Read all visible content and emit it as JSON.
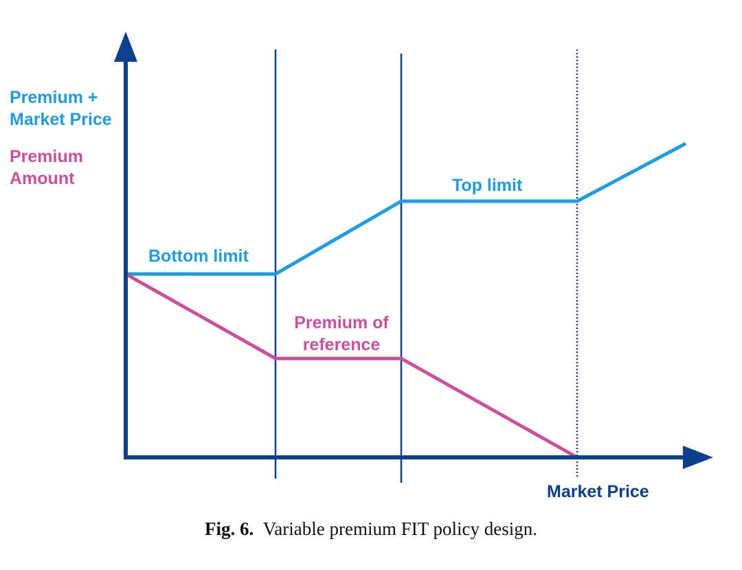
{
  "colors": {
    "axis": "#0d3f8f",
    "premium_plus_market": "#1e9be3",
    "premium_amount": "#cc4f9b"
  },
  "axes": {
    "y_label_premium_plus_market": [
      "Premium +",
      "Market Price"
    ],
    "y_label_premium_amount": [
      "Premium",
      "Amount"
    ],
    "x_label": "Market Price"
  },
  "annotations": {
    "bottom_limit": "Bottom limit",
    "top_limit": "Top limit",
    "premium_of_reference": [
      "Premium of",
      "reference"
    ]
  },
  "caption": {
    "number": "Fig. 6.",
    "text": "Variable premium FIT policy design."
  }
}
